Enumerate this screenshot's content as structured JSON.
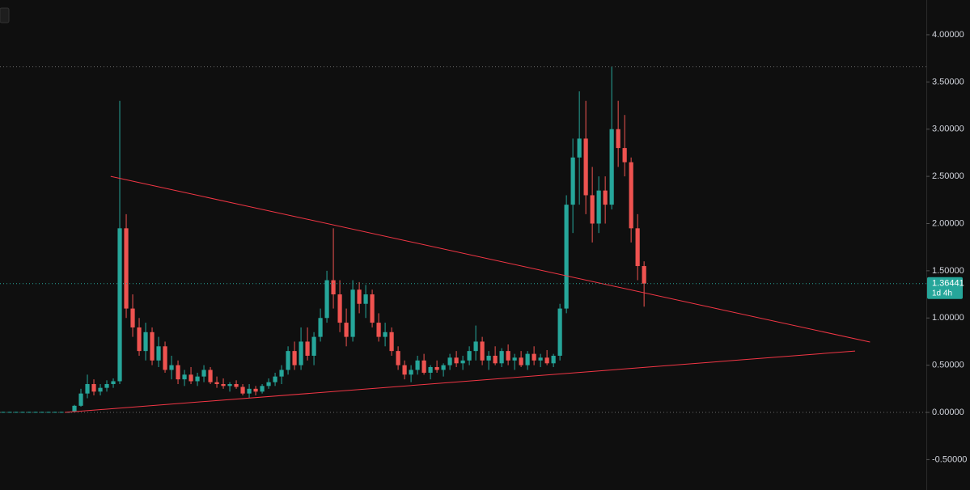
{
  "chart_data": {
    "type": "candlestick",
    "open": [
      0.005,
      0.005,
      0.005,
      0.005,
      0.005,
      0.005,
      0.005,
      0.005,
      0.005,
      0.005,
      0.005,
      0.01,
      0.07,
      0.2,
      0.3,
      0.22,
      0.26,
      0.3,
      0.33,
      1.95,
      1.1,
      0.9,
      0.65,
      0.85,
      0.55,
      0.7,
      0.45,
      0.5,
      0.35,
      0.4,
      0.33,
      0.38,
      0.45,
      0.32,
      0.3,
      0.28,
      0.3,
      0.27,
      0.2,
      0.25,
      0.22,
      0.28,
      0.32,
      0.38,
      0.45,
      0.65,
      0.5,
      0.75,
      0.6,
      0.8,
      1.0,
      1.4,
      1.25,
      0.95,
      0.8,
      1.3,
      1.15,
      1.25,
      0.95,
      0.8,
      0.85,
      0.65,
      0.5,
      0.4,
      0.45,
      0.55,
      0.42,
      0.48,
      0.45,
      0.5,
      0.58,
      0.52,
      0.55,
      0.65,
      0.75,
      0.55,
      0.6,
      0.52,
      0.65,
      0.55,
      0.58,
      0.5,
      0.62,
      0.55,
      0.58,
      0.52,
      0.6,
      1.1,
      2.2,
      2.7,
      2.9,
      2.3,
      2.0,
      2.35,
      2.2,
      3.0,
      2.8,
      2.65,
      1.95,
      1.55
    ],
    "high": [
      0.006,
      0.006,
      0.006,
      0.006,
      0.006,
      0.006,
      0.006,
      0.006,
      0.006,
      0.006,
      0.006,
      0.08,
      0.25,
      0.4,
      0.35,
      0.3,
      0.34,
      0.36,
      3.3,
      2.1,
      1.25,
      1.0,
      0.95,
      0.9,
      0.8,
      0.75,
      0.6,
      0.55,
      0.45,
      0.48,
      0.42,
      0.5,
      0.48,
      0.38,
      0.36,
      0.32,
      0.34,
      0.3,
      0.3,
      0.28,
      0.3,
      0.36,
      0.42,
      0.5,
      0.7,
      0.75,
      0.9,
      0.9,
      0.85,
      1.1,
      1.5,
      1.95,
      1.4,
      1.1,
      1.4,
      1.38,
      1.35,
      1.3,
      1.05,
      0.95,
      0.9,
      0.7,
      0.55,
      0.5,
      0.6,
      0.62,
      0.5,
      0.55,
      0.52,
      0.62,
      0.65,
      0.6,
      0.7,
      0.92,
      0.8,
      0.65,
      0.7,
      0.68,
      0.72,
      0.62,
      0.65,
      0.65,
      0.7,
      0.62,
      0.66,
      0.62,
      1.15,
      2.3,
      2.9,
      3.4,
      3.3,
      2.6,
      2.5,
      2.5,
      3.66,
      3.3,
      3.15,
      2.7,
      2.1,
      1.6
    ],
    "low": [
      0.004,
      0.004,
      0.004,
      0.004,
      0.004,
      0.004,
      0.004,
      0.004,
      0.004,
      0.004,
      0.004,
      0.01,
      0.06,
      0.15,
      0.18,
      0.18,
      0.22,
      0.26,
      0.3,
      1.0,
      0.8,
      0.6,
      0.55,
      0.5,
      0.48,
      0.42,
      0.35,
      0.3,
      0.28,
      0.3,
      0.28,
      0.32,
      0.3,
      0.26,
      0.25,
      0.22,
      0.25,
      0.18,
      0.15,
      0.18,
      0.2,
      0.25,
      0.28,
      0.3,
      0.4,
      0.45,
      0.45,
      0.55,
      0.5,
      0.75,
      0.95,
      1.1,
      0.85,
      0.7,
      0.75,
      1.05,
      1.0,
      0.9,
      0.75,
      0.7,
      0.6,
      0.45,
      0.35,
      0.32,
      0.4,
      0.4,
      0.35,
      0.42,
      0.38,
      0.45,
      0.48,
      0.45,
      0.5,
      0.55,
      0.5,
      0.45,
      0.5,
      0.48,
      0.5,
      0.45,
      0.48,
      0.45,
      0.5,
      0.48,
      0.5,
      0.48,
      0.55,
      1.05,
      1.9,
      2.2,
      2.1,
      1.8,
      1.9,
      2.0,
      2.15,
      2.6,
      2.5,
      1.8,
      1.4,
      1.12
    ],
    "close": [
      0.005,
      0.005,
      0.005,
      0.005,
      0.005,
      0.005,
      0.005,
      0.005,
      0.005,
      0.005,
      0.005,
      0.07,
      0.2,
      0.3,
      0.22,
      0.26,
      0.3,
      0.33,
      1.95,
      1.1,
      0.9,
      0.65,
      0.85,
      0.55,
      0.7,
      0.45,
      0.5,
      0.35,
      0.4,
      0.33,
      0.38,
      0.45,
      0.32,
      0.3,
      0.28,
      0.3,
      0.27,
      0.2,
      0.25,
      0.22,
      0.28,
      0.32,
      0.38,
      0.45,
      0.65,
      0.5,
      0.75,
      0.6,
      0.8,
      1.0,
      1.4,
      1.25,
      0.95,
      0.8,
      1.3,
      1.15,
      1.25,
      0.95,
      0.8,
      0.85,
      0.65,
      0.5,
      0.4,
      0.45,
      0.55,
      0.42,
      0.48,
      0.45,
      0.5,
      0.58,
      0.52,
      0.55,
      0.65,
      0.75,
      0.55,
      0.6,
      0.52,
      0.65,
      0.55,
      0.58,
      0.5,
      0.62,
      0.55,
      0.58,
      0.52,
      0.6,
      1.1,
      2.2,
      2.7,
      2.9,
      2.3,
      2.0,
      2.35,
      2.2,
      3.0,
      2.8,
      2.65,
      1.95,
      1.55,
      1.36441
    ],
    "up_color": "#26a69a",
    "down_color": "#ef5350",
    "xlim": [
      -0.5,
      142.6
    ],
    "ylim": [
      -0.822,
      4.368
    ],
    "yticks": [
      {
        "value": 4,
        "label": "4.00000"
      },
      {
        "value": 3.5,
        "label": "3.50000"
      },
      {
        "value": 3,
        "label": "3.00000"
      },
      {
        "value": 2.5,
        "label": "2.50000"
      },
      {
        "value": 2,
        "label": "2.00000"
      },
      {
        "value": 1.5,
        "label": "1.50000"
      },
      {
        "value": 1,
        "label": "1.00000"
      },
      {
        "value": 0.5,
        "label": "0.50000"
      },
      {
        "value": 0,
        "label": "0.00000"
      },
      {
        "value": -0.5,
        "label": "-0.50000"
      }
    ],
    "trendlines": [
      {
        "x": [
          16.6,
          133.9
        ],
        "y": [
          2.5,
          0.745
        ],
        "color": "#f23645"
      },
      {
        "x": [
          9.5,
          131.6
        ],
        "y": [
          0,
          0.65
        ],
        "color": "#f23645"
      }
    ],
    "last_price": {
      "value": 1.36441,
      "label": "1.36441"
    },
    "countdown": "1d 4h",
    "badge_color": "#26a69a"
  }
}
